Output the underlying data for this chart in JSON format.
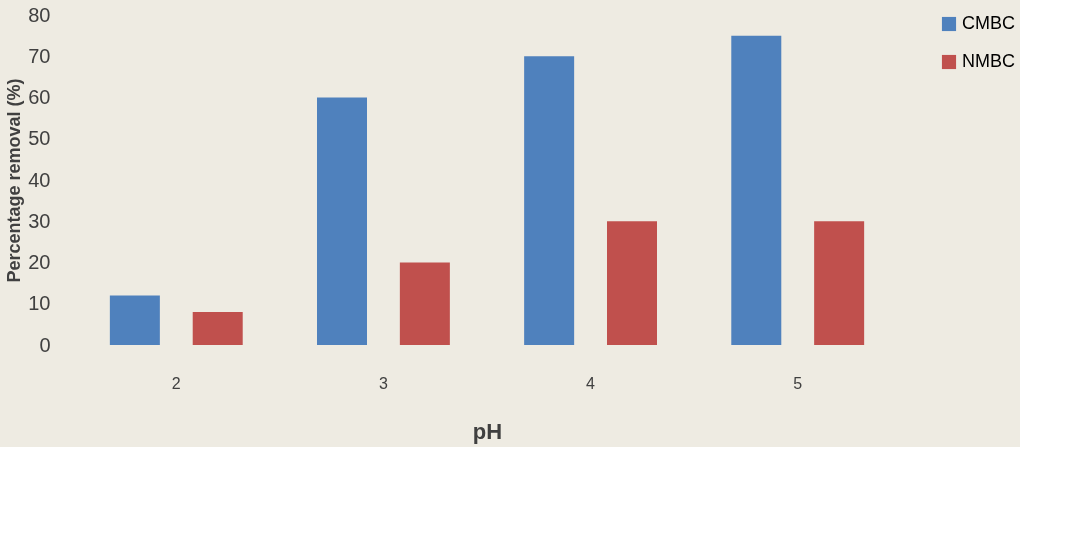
{
  "chart_data": {
    "type": "bar",
    "xlabel": "pH",
    "ylabel": "Percentage removal (%)",
    "categories": [
      "2",
      "3",
      "4",
      "5"
    ],
    "series": [
      {
        "name": "CMBC",
        "color": "#4f81bd",
        "values": [
          12,
          60,
          70,
          75
        ]
      },
      {
        "name": "NMBC",
        "color": "#c0504d",
        "values": [
          8,
          20,
          30,
          30
        ]
      }
    ],
    "ylim": [
      0,
      80
    ],
    "yticks": [
      0,
      10,
      20,
      30,
      40,
      50,
      60,
      70,
      80
    ],
    "grid": false,
    "legend": "right"
  }
}
